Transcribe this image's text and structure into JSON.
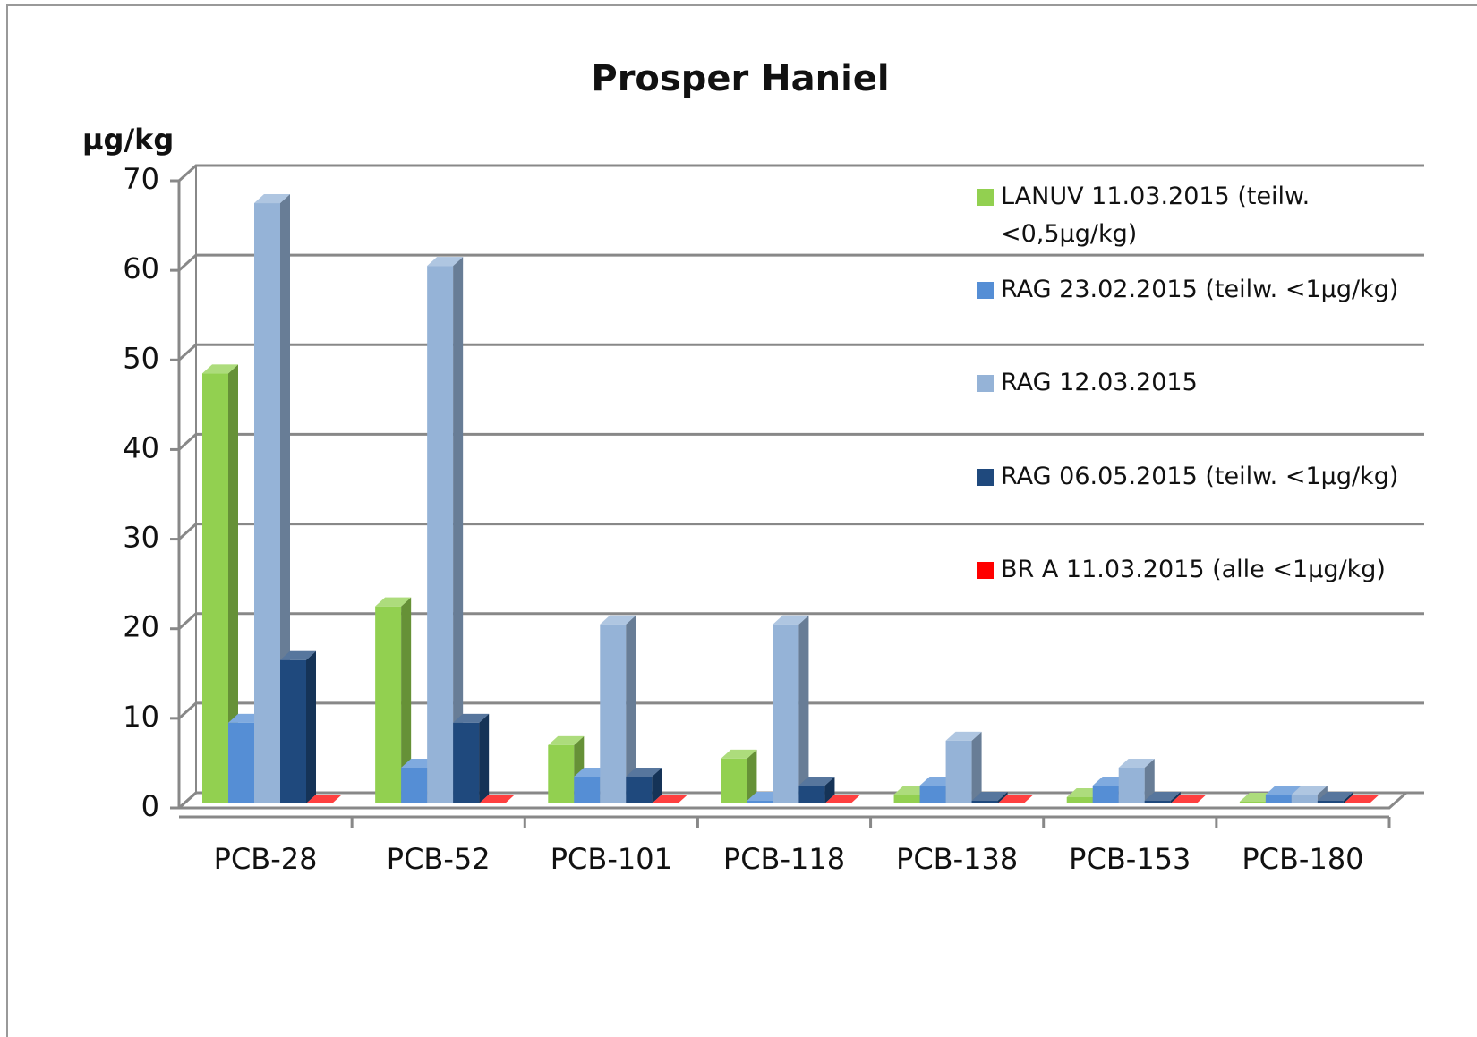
{
  "chart_data": {
    "type": "bar3d",
    "title": "Prosper Haniel",
    "y_axis_label": "µg/kg",
    "categories": [
      "PCB-28",
      "PCB-52",
      "PCB-101",
      "PCB-118",
      "PCB-138",
      "PCB-153",
      "PCB-180"
    ],
    "series": [
      {
        "name": "LANUV 11.03.2015 (teilw. <0,5µg/kg)",
        "color": "#92d050",
        "values": [
          48,
          22,
          6.5,
          5,
          1,
          0.7,
          0.2
        ]
      },
      {
        "name": "RAG 23.02.2015 (teilw. <1µg/kg)",
        "color": "#558ed5",
        "values": [
          9,
          4,
          3,
          0.3,
          2,
          2,
          1
        ]
      },
      {
        "name": "RAG 12.03.2015",
        "color": "#95b3d7",
        "values": [
          67,
          60,
          20,
          20,
          7,
          4,
          1
        ]
      },
      {
        "name": "RAG 06.05.2015 (teilw. <1µg/kg)",
        "color": "#1f497d",
        "values": [
          16,
          9,
          3,
          2,
          0.3,
          0.3,
          0.3
        ]
      },
      {
        "name": "BR A 11.03.2015 (alle <1µg/kg)",
        "color": "#ff0000",
        "values": [
          0,
          0,
          0,
          0,
          0,
          0,
          0
        ]
      }
    ],
    "ylim": [
      0,
      70
    ],
    "yticks": [
      0,
      10,
      20,
      30,
      40,
      50,
      60,
      70
    ],
    "grid": true,
    "legend": "right"
  }
}
